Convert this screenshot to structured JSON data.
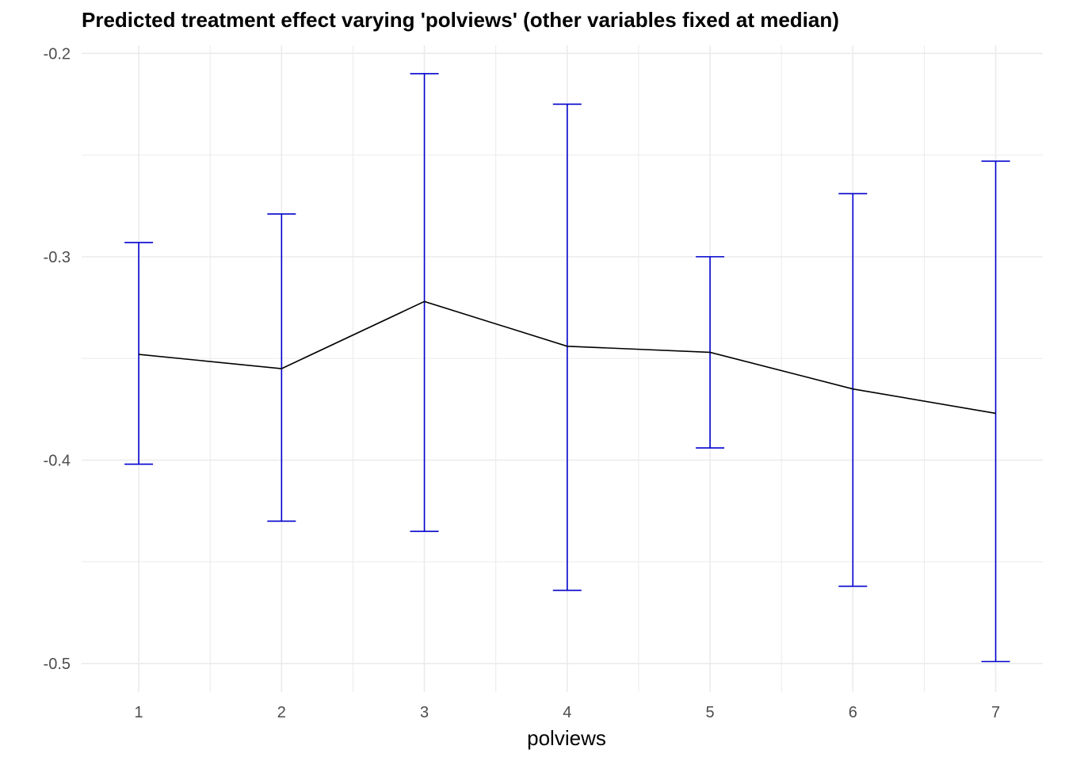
{
  "chart_data": {
    "type": "line",
    "title": "Predicted treatment effect varying 'polviews' (other variables fixed at median)",
    "xlabel": "polviews",
    "ylabel": "",
    "x": [
      1,
      2,
      3,
      4,
      5,
      6,
      7
    ],
    "xlim": [
      0.6,
      7.33
    ],
    "ylim": [
      -0.514,
      -0.196
    ],
    "x_ticks": [
      1,
      2,
      3,
      4,
      5,
      6,
      7
    ],
    "x_tick_labels": [
      "1",
      "2",
      "3",
      "4",
      "5",
      "6",
      "7"
    ],
    "y_ticks": [
      -0.2,
      -0.3,
      -0.4,
      -0.5
    ],
    "y_tick_labels": [
      "-0.2",
      "-0.3",
      "-0.4",
      "-0.5"
    ],
    "grid": true,
    "series": [
      {
        "values": [
          -0.348,
          -0.355,
          -0.322,
          -0.344,
          -0.347,
          -0.365,
          -0.377
        ],
        "lower": [
          -0.402,
          -0.43,
          -0.435,
          -0.464,
          -0.394,
          -0.462,
          -0.499
        ],
        "upper": [
          -0.293,
          -0.279,
          -0.21,
          -0.225,
          -0.3,
          -0.269,
          -0.253
        ]
      }
    ],
    "line_color": "#000000",
    "errorbar_color": "#0000CD",
    "grid_color": "#EBEBEB"
  }
}
